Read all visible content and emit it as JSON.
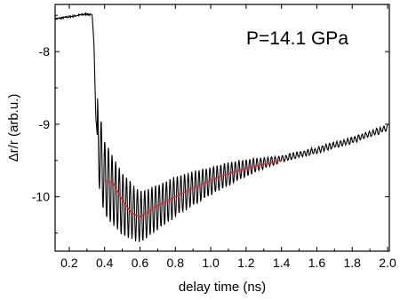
{
  "chart_data": {
    "type": "line",
    "xlabel": "delay time (ns)",
    "ylabel": "Δr/r (arb.u.)",
    "annotation": "P=14.1 GPa",
    "xlim": [
      0.12,
      2.01
    ],
    "ylim": [
      -10.75,
      -7.35
    ],
    "x_ticks": [
      0.2,
      0.4,
      0.6,
      0.8,
      1.0,
      1.2,
      1.4,
      1.6,
      1.8,
      2.0
    ],
    "x_tick_labels": [
      "0.2",
      "0.4",
      "0.6",
      "0.8",
      "1.0",
      "1.2",
      "1.4",
      "1.6",
      "1.8",
      "2.0"
    ],
    "y_ticks": [
      -8,
      -9,
      -10
    ],
    "y_tick_labels": [
      "-8",
      "-9",
      "-10"
    ],
    "grid": false,
    "series": [
      {
        "color": "#000000",
        "envelope": {
          "x": [
            0.12,
            0.2,
            0.3,
            0.33,
            0.34,
            0.35,
            0.36,
            0.37,
            0.4,
            0.5,
            0.6,
            0.7,
            0.8,
            1.0,
            1.2,
            1.4,
            1.6,
            1.8,
            2.0
          ],
          "y": [
            -7.55,
            -7.52,
            -7.48,
            -7.5,
            -7.9,
            -8.9,
            -9.2,
            -9.35,
            -9.75,
            -10.1,
            -10.28,
            -10.15,
            -10.0,
            -9.78,
            -9.6,
            -9.48,
            -9.36,
            -9.22,
            -9.05
          ]
        },
        "oscillation": {
          "start": 0.36,
          "period": 0.0205,
          "amplitude": [
            0.55,
            0.35,
            0.04
          ],
          "decay_x": [
            0.36,
            0.6,
            1.4
          ]
        }
      },
      {
        "color": "#e8262a",
        "x": [
          0.4,
          0.45,
          0.5,
          0.55,
          0.6,
          0.65,
          0.7,
          0.8,
          0.9,
          1.0,
          1.1,
          1.2,
          1.3,
          1.4
        ],
        "y": [
          -9.77,
          -9.82,
          -10.05,
          -10.22,
          -10.28,
          -10.2,
          -10.12,
          -10.0,
          -9.88,
          -9.77,
          -9.68,
          -9.61,
          -9.55,
          -9.5
        ]
      }
    ]
  }
}
